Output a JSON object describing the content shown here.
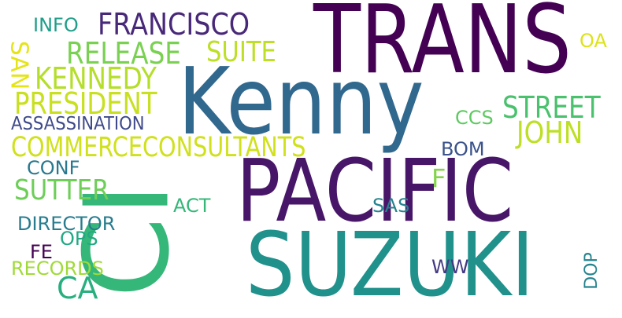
{
  "cloud": {
    "words": [
      {
        "text": "TRANS",
        "color": "#440154"
      },
      {
        "text": "Kenny",
        "color": "#31688e"
      },
      {
        "text": "PACIFIC",
        "color": "#481668"
      },
      {
        "text": "SUZUKI",
        "color": "#21918c"
      },
      {
        "text": "CI",
        "color": "#35b779"
      },
      {
        "text": "FRANCISCO",
        "color": "#482878"
      },
      {
        "text": "RELEASE",
        "color": "#7ad151"
      },
      {
        "text": "SUITE",
        "color": "#bddf26"
      },
      {
        "text": "KENNEDY",
        "color": "#b5de2b"
      },
      {
        "text": "PRESIDENT",
        "color": "#c8e020"
      },
      {
        "text": "ASSASSINATION",
        "color": "#3e4a89"
      },
      {
        "text": "COMMERCECONSULTANTS",
        "color": "#d0e11c"
      },
      {
        "text": "STREET",
        "color": "#4ac16d"
      },
      {
        "text": "JOHN",
        "color": "#bddf26"
      },
      {
        "text": "SAN",
        "color": "#e5e419"
      },
      {
        "text": "INFO",
        "color": "#1f9e89"
      },
      {
        "text": "OA",
        "color": "#dde318"
      },
      {
        "text": "CCS",
        "color": "#5ec962"
      },
      {
        "text": "BOM",
        "color": "#3b528b"
      },
      {
        "text": "CONF",
        "color": "#2a788e"
      },
      {
        "text": "SUTTER",
        "color": "#6ece58"
      },
      {
        "text": "F",
        "color": "#84d44b"
      },
      {
        "text": "ACT",
        "color": "#35b779"
      },
      {
        "text": "SAS",
        "color": "#26828e"
      },
      {
        "text": "DIRECTOR",
        "color": "#287c8e"
      },
      {
        "text": "OPS",
        "color": "#22a884"
      },
      {
        "text": "FE",
        "color": "#440154"
      },
      {
        "text": "RECORDS",
        "color": "#a0da39"
      },
      {
        "text": "WW",
        "color": "#443a83"
      },
      {
        "text": "DOP",
        "color": "#25848e"
      },
      {
        "text": "CA",
        "color": "#29af7f"
      }
    ]
  }
}
